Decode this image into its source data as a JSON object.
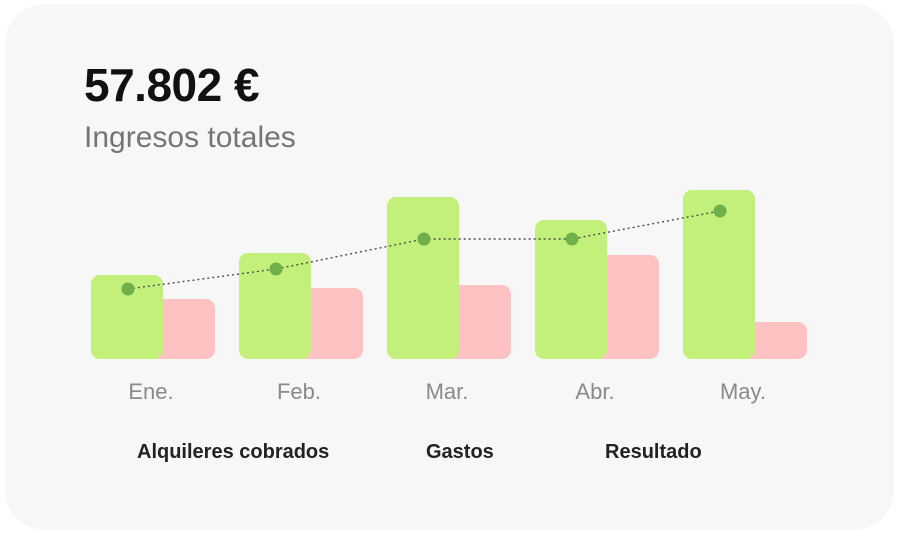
{
  "header": {
    "total": "57.802 €",
    "subtitle": "Ingresos totales"
  },
  "colors": {
    "income": "#c3f07a",
    "expenses": "#ffc2c2",
    "result": "#6fb04a"
  },
  "chart_data": {
    "type": "bar",
    "categories": [
      "Ene.",
      "Feb.",
      "Mar.",
      "Abr.",
      "May."
    ],
    "series": [
      {
        "name": "Alquileres cobrados",
        "values": [
          84,
          106,
          162,
          139,
          169
        ]
      },
      {
        "name": "Gastos",
        "values": [
          60,
          71,
          74,
          104,
          37
        ]
      },
      {
        "name": "Resultado",
        "values": [
          70,
          90,
          120,
          120,
          148
        ]
      }
    ],
    "series_types": [
      "bar",
      "bar",
      "line"
    ],
    "ylim": [
      0,
      170
    ],
    "grid": false,
    "legend_position": "bottom"
  }
}
